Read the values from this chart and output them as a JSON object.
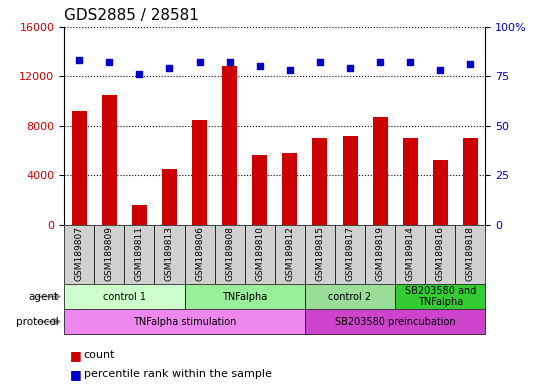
{
  "title": "GDS2885 / 28581",
  "samples": [
    "GSM189807",
    "GSM189809",
    "GSM189811",
    "GSM189813",
    "GSM189806",
    "GSM189808",
    "GSM189810",
    "GSM189812",
    "GSM189815",
    "GSM189817",
    "GSM189819",
    "GSM189814",
    "GSM189816",
    "GSM189818"
  ],
  "counts": [
    9200,
    10500,
    1600,
    4500,
    8500,
    12800,
    5600,
    5800,
    7000,
    7200,
    8700,
    7000,
    5200,
    7000
  ],
  "percentiles": [
    83,
    82,
    76,
    79,
    82,
    82,
    80,
    78,
    82,
    79,
    82,
    82,
    78,
    81
  ],
  "bar_color": "#cc0000",
  "dot_color": "#0000cc",
  "ylim_left": [
    0,
    16000
  ],
  "ylim_right": [
    0,
    100
  ],
  "yticks_left": [
    0,
    4000,
    8000,
    12000,
    16000
  ],
  "yticks_right": [
    0,
    25,
    50,
    75,
    100
  ],
  "agent_groups": [
    {
      "label": "control 1",
      "start": 0,
      "end": 4,
      "color": "#ccffcc"
    },
    {
      "label": "TNFalpha",
      "start": 4,
      "end": 8,
      "color": "#99ee99"
    },
    {
      "label": "control 2",
      "start": 8,
      "end": 11,
      "color": "#99dd99"
    },
    {
      "label": "SB203580 and\nTNFalpha",
      "start": 11,
      "end": 14,
      "color": "#33cc33"
    }
  ],
  "protocol_groups": [
    {
      "label": "TNFalpha stimulation",
      "start": 0,
      "end": 8,
      "color": "#ee88ee"
    },
    {
      "label": "SB203580 preincubation",
      "start": 8,
      "end": 14,
      "color": "#cc44cc"
    }
  ],
  "legend_count_color": "#cc0000",
  "legend_pct_color": "#0000cc",
  "title_fontsize": 11,
  "bar_width": 0.5
}
